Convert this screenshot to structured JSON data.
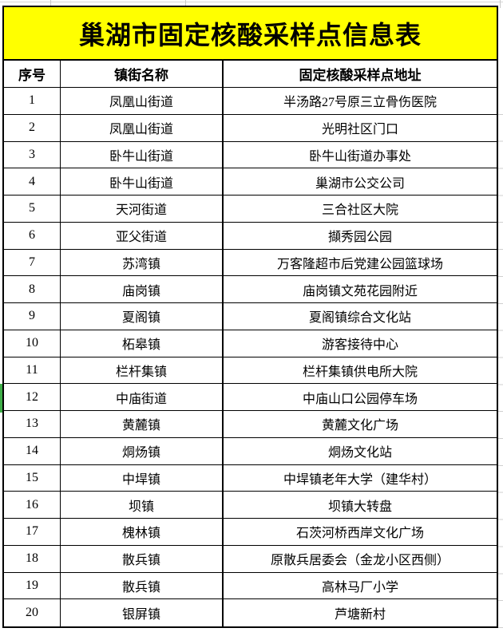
{
  "sheet": {
    "title": "巢湖市固定核酸采样点信息表",
    "columns": {
      "no": "序号",
      "town": "镇街名称",
      "address": "固定核酸采样点地址"
    },
    "rows": [
      {
        "no": "1",
        "town": "凤凰山街道",
        "address": "半汤路27号原三立骨伤医院"
      },
      {
        "no": "2",
        "town": "凤凰山街道",
        "address": "光明社区门口"
      },
      {
        "no": "3",
        "town": "卧牛山街道",
        "address": "卧牛山街道办事处"
      },
      {
        "no": "4",
        "town": "卧牛山街道",
        "address": "巢湖市公交公司"
      },
      {
        "no": "5",
        "town": "天河街道",
        "address": "三合社区大院"
      },
      {
        "no": "6",
        "town": "亚父街道",
        "address": "擷秀园公园"
      },
      {
        "no": "7",
        "town": "苏湾镇",
        "address": "万客隆超市后党建公园篮球场"
      },
      {
        "no": "8",
        "town": "庙岗镇",
        "address": "庙岗镇文苑花园附近"
      },
      {
        "no": "9",
        "town": "夏阁镇",
        "address": "夏阁镇综合文化站"
      },
      {
        "no": "10",
        "town": "柘皋镇",
        "address": "游客接待中心"
      },
      {
        "no": "11",
        "town": "栏杆集镇",
        "address": "栏杆集镇供电所大院"
      },
      {
        "no": "12",
        "town": "中庙街道",
        "address": "中庙山口公园停车场"
      },
      {
        "no": "13",
        "town": "黄麓镇",
        "address": "黄麓文化广场"
      },
      {
        "no": "14",
        "town": "烔炀镇",
        "address": "烔炀文化站"
      },
      {
        "no": "15",
        "town": "中垾镇",
        "address": "中垾镇老年大学（建华村）"
      },
      {
        "no": "16",
        "town": "坝镇",
        "address": "坝镇大转盘"
      },
      {
        "no": "17",
        "town": "槐林镇",
        "address": "石茨河桥西岸文化广场"
      },
      {
        "no": "18",
        "town": "散兵镇",
        "address": "原散兵居委会（金龙小区西侧）"
      },
      {
        "no": "19",
        "town": "散兵镇",
        "address": "高林马厂小学"
      },
      {
        "no": "20",
        "town": "银屏镇",
        "address": "芦塘新村"
      }
    ],
    "indicated_row_no": "12",
    "colors": {
      "title_bg": "#ffff00",
      "border": "#000000",
      "row_indicator": "#3fae49",
      "gridline": "#d6d6d6"
    }
  }
}
